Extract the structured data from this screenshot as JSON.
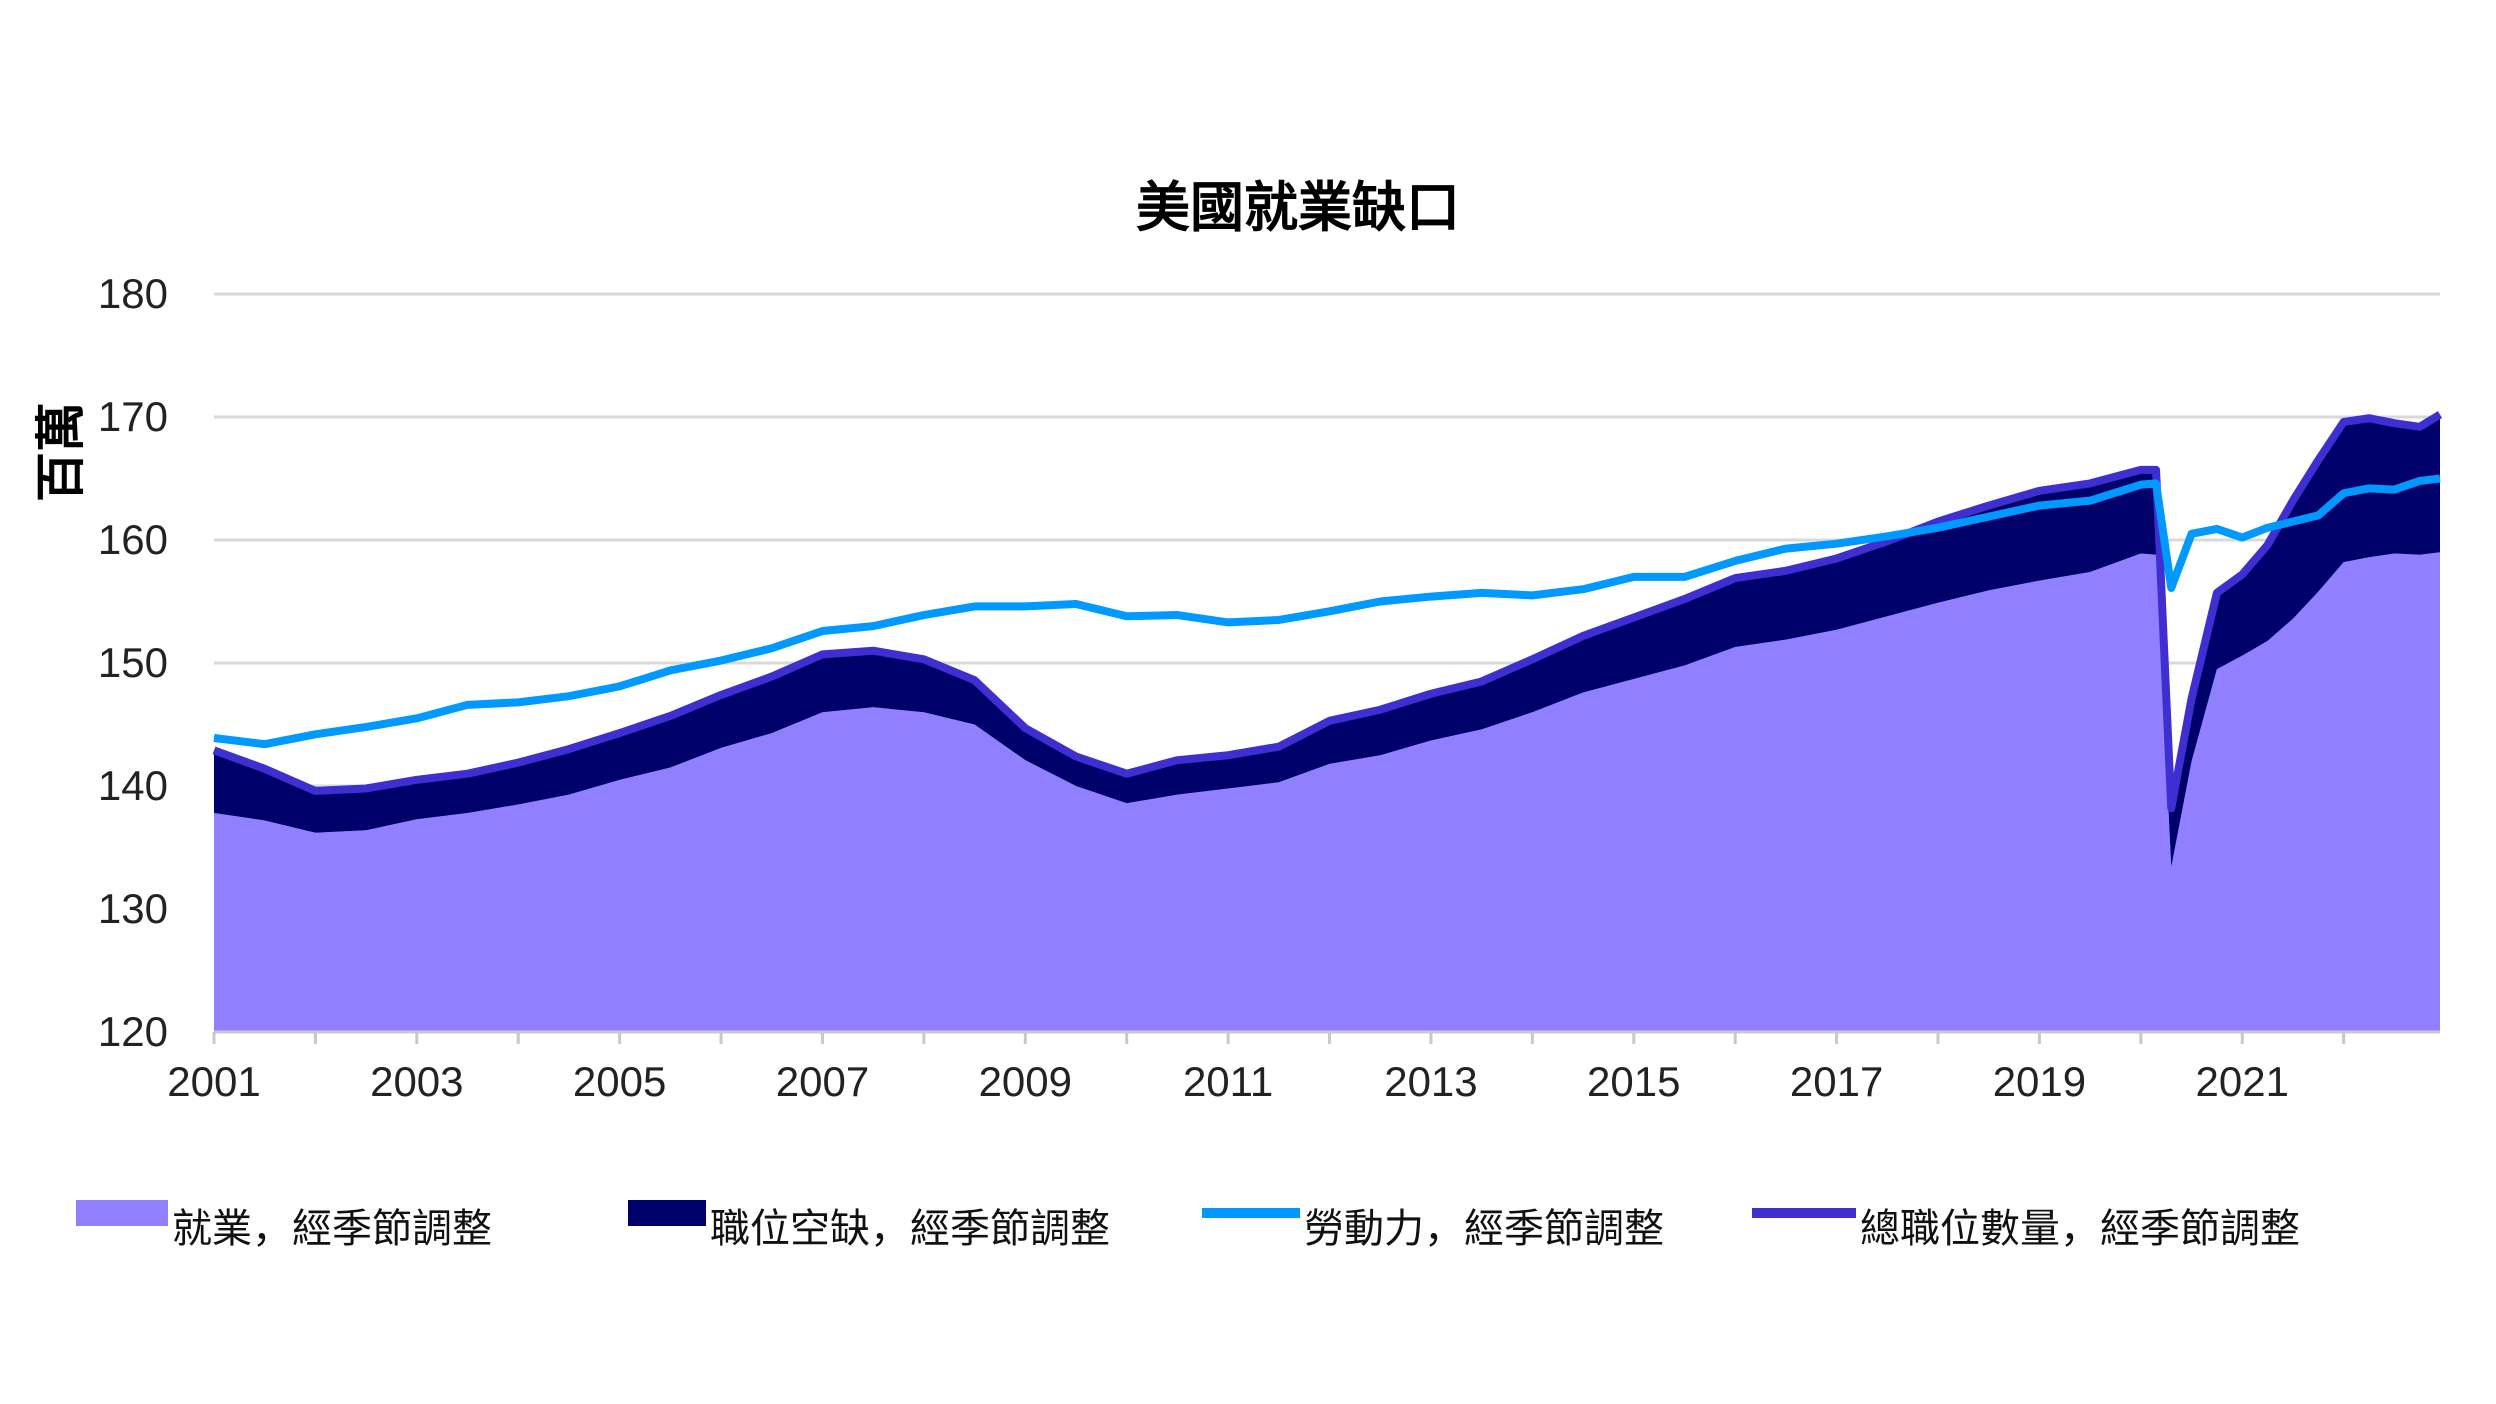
{
  "chart_data": {
    "type": "area",
    "title": "美國就業缺口",
    "ylabel": "百萬",
    "xlabel": "",
    "ylim": [
      120,
      180
    ],
    "yticks": [
      120,
      130,
      140,
      150,
      160,
      170,
      180
    ],
    "xticks": [
      "2001",
      "2003",
      "2005",
      "2007",
      "2009",
      "2011",
      "2013",
      "2015",
      "2017",
      "2019",
      "2021"
    ],
    "xlim": [
      2001.0,
      2022.95
    ],
    "grid": true,
    "legend_position": "bottom",
    "colors": {
      "employment": "#9080ff",
      "vacancies": "#00006a",
      "labor_force": "#0099ff",
      "total_jobs": "#3f2fd0"
    },
    "series": [
      {
        "key": "employment",
        "name": "就業，經季節調整",
        "style": "area",
        "x": [
          2001.0,
          2001.5,
          2002.0,
          2002.5,
          2003.0,
          2003.5,
          2004.0,
          2004.5,
          2005.0,
          2005.5,
          2006.0,
          2006.5,
          2007.0,
          2007.5,
          2008.0,
          2008.5,
          2009.0,
          2009.5,
          2010.0,
          2010.5,
          2011.0,
          2011.5,
          2012.0,
          2012.5,
          2013.0,
          2013.5,
          2014.0,
          2014.5,
          2015.0,
          2015.5,
          2016.0,
          2016.5,
          2017.0,
          2017.5,
          2018.0,
          2018.5,
          2019.0,
          2019.5,
          2020.0,
          2020.15,
          2020.3,
          2020.5,
          2020.75,
          2021.0,
          2021.25,
          2021.5,
          2021.75,
          2022.0,
          2022.25,
          2022.5,
          2022.75,
          2022.95
        ],
        "values": [
          137.8,
          137.2,
          136.2,
          136.4,
          137.3,
          137.8,
          138.5,
          139.3,
          140.5,
          141.5,
          143.1,
          144.3,
          146.0,
          146.4,
          146.0,
          145.0,
          142.1,
          140.0,
          138.6,
          139.3,
          139.8,
          140.3,
          141.8,
          142.5,
          143.7,
          144.6,
          146.0,
          147.6,
          148.7,
          149.8,
          151.3,
          151.9,
          152.7,
          153.8,
          154.9,
          155.9,
          156.7,
          157.4,
          158.9,
          158.8,
          133.4,
          142.0,
          149.5,
          150.6,
          151.8,
          153.6,
          155.8,
          158.2,
          158.6,
          158.9,
          158.8,
          159.0
        ]
      },
      {
        "key": "vacancies",
        "name": "職位空缺，經季節調整",
        "style": "area",
        "x": [
          2001.0,
          2001.5,
          2002.0,
          2002.5,
          2003.0,
          2003.5,
          2004.0,
          2004.5,
          2005.0,
          2005.5,
          2006.0,
          2006.5,
          2007.0,
          2007.5,
          2008.0,
          2008.5,
          2009.0,
          2009.5,
          2010.0,
          2010.5,
          2011.0,
          2011.5,
          2012.0,
          2012.5,
          2013.0,
          2013.5,
          2014.0,
          2014.5,
          2015.0,
          2015.5,
          2016.0,
          2016.5,
          2017.0,
          2017.5,
          2018.0,
          2018.5,
          2019.0,
          2019.5,
          2020.0,
          2020.15,
          2020.3,
          2020.5,
          2020.75,
          2021.0,
          2021.25,
          2021.5,
          2021.75,
          2022.0,
          2022.25,
          2022.5,
          2022.75,
          2022.95
        ],
        "values": [
          5.1,
          4.2,
          3.4,
          3.4,
          3.2,
          3.2,
          3.4,
          3.7,
          3.8,
          4.2,
          4.3,
          4.6,
          4.7,
          4.6,
          4.3,
          3.6,
          2.6,
          2.4,
          2.4,
          2.8,
          2.7,
          2.9,
          3.5,
          3.7,
          3.8,
          3.9,
          4.3,
          4.6,
          5.0,
          5.4,
          5.6,
          5.6,
          5.8,
          6.1,
          6.6,
          6.9,
          7.3,
          7.2,
          6.8,
          6.9,
          4.8,
          5.1,
          6.2,
          6.6,
          7.8,
          9.6,
          10.7,
          11.4,
          11.3,
          10.6,
          10.4,
          11.2
        ]
      },
      {
        "key": "labor_force",
        "name": "勞動力，經季節調整",
        "style": "line",
        "x": [
          2001.0,
          2001.5,
          2002.0,
          2002.5,
          2003.0,
          2003.5,
          2004.0,
          2004.5,
          2005.0,
          2005.5,
          2006.0,
          2006.5,
          2007.0,
          2007.5,
          2008.0,
          2008.5,
          2009.0,
          2009.5,
          2010.0,
          2010.5,
          2011.0,
          2011.5,
          2012.0,
          2012.5,
          2013.0,
          2013.5,
          2014.0,
          2014.5,
          2015.0,
          2015.5,
          2016.0,
          2016.5,
          2017.0,
          2017.5,
          2018.0,
          2018.5,
          2019.0,
          2019.5,
          2020.0,
          2020.15,
          2020.3,
          2020.5,
          2020.75,
          2021.0,
          2021.25,
          2021.5,
          2021.75,
          2022.0,
          2022.25,
          2022.5,
          2022.75,
          2022.95
        ],
        "values": [
          143.9,
          143.4,
          144.2,
          144.8,
          145.5,
          146.6,
          146.8,
          147.3,
          148.1,
          149.4,
          150.2,
          151.2,
          152.6,
          153.0,
          153.9,
          154.6,
          154.6,
          154.8,
          153.8,
          153.9,
          153.3,
          153.5,
          154.2,
          155.0,
          155.4,
          155.7,
          155.5,
          156.0,
          157.0,
          157.0,
          158.3,
          159.3,
          159.7,
          160.3,
          161.0,
          161.9,
          162.8,
          163.2,
          164.5,
          164.6,
          156.1,
          160.5,
          160.9,
          160.2,
          161.0,
          161.5,
          162.0,
          163.8,
          164.2,
          164.1,
          164.8,
          165.0
        ]
      },
      {
        "key": "total_jobs",
        "name": "總職位數量，經季節調整",
        "style": "line",
        "derived": "employment + vacancies"
      }
    ]
  }
}
